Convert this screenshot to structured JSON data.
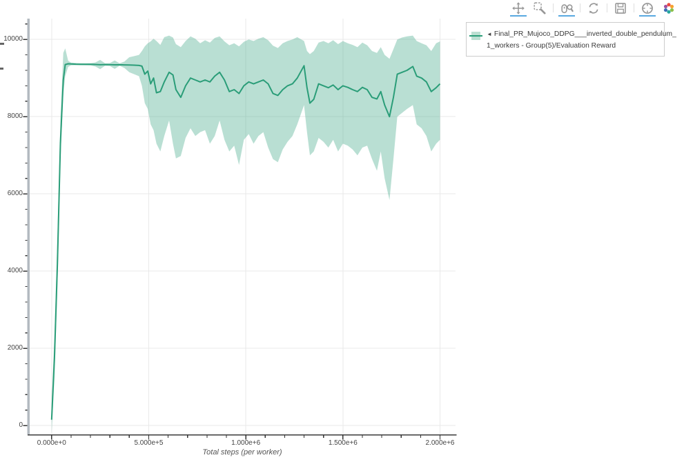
{
  "page": {
    "background": "#ffffff"
  },
  "toolbar": {
    "tools": [
      {
        "name": "pan",
        "active": true
      },
      {
        "name": "box-zoom",
        "active": false
      },
      {
        "name": "wheel-zoom",
        "active": true
      },
      {
        "name": "reset",
        "active": false
      },
      {
        "name": "save",
        "active": false
      },
      {
        "name": "hover",
        "active": true
      },
      {
        "name": "logo",
        "active": false
      }
    ]
  },
  "legend": {
    "marker_glyph": "◄",
    "line1": "Final_PR_Mujoco_DDPG___inverted_double_pendulum_",
    "line2": "1_workers - Group(5)/Evaluation Reward"
  },
  "chart_data": {
    "type": "line",
    "title": "",
    "xlabel": "Total steps (per worker)",
    "ylabel": "",
    "grid": true,
    "legend_position": "top-right-outside",
    "xlim": [
      -113000,
      2080000
    ],
    "ylim": [
      -230,
      10540
    ],
    "x_ticks": [
      {
        "value": 0,
        "label": "0.000e+0"
      },
      {
        "value": 500000,
        "label": "5.000e+5"
      },
      {
        "value": 1000000,
        "label": "1.000e+6"
      },
      {
        "value": 1500000,
        "label": "1.500e+6"
      },
      {
        "value": 2000000,
        "label": "2.000e+6"
      }
    ],
    "y_ticks": [
      {
        "value": 0,
        "label": "0"
      },
      {
        "value": 2000,
        "label": "2000"
      },
      {
        "value": 4000,
        "label": "4000"
      },
      {
        "value": 6000,
        "label": "6000"
      },
      {
        "value": 8000,
        "label": "8000"
      },
      {
        "value": 10000,
        "label": "10000"
      }
    ],
    "x_minor_step": 100000,
    "y_minor_step": 400,
    "y_minor_max": 10400,
    "series": [
      {
        "name": "Final_PR_Mujoco_DDPG___inverted_double_pendulum_1_workers - Group(5)/Evaluation Reward",
        "steps": [
          0,
          15000,
          30000,
          45000,
          60000,
          70000,
          85000,
          100000,
          125000,
          150000,
          175000,
          200000,
          225000,
          250000,
          275000,
          300000,
          325000,
          350000,
          375000,
          400000,
          425000,
          450000,
          465000,
          480000,
          495000,
          510000,
          525000,
          540000,
          560000,
          580000,
          605000,
          625000,
          640000,
          665000,
          690000,
          715000,
          740000,
          765000,
          790000,
          815000,
          840000,
          865000,
          890000,
          915000,
          940000,
          965000,
          990000,
          1015000,
          1040000,
          1065000,
          1090000,
          1115000,
          1140000,
          1165000,
          1190000,
          1215000,
          1240000,
          1265000,
          1300000,
          1315000,
          1330000,
          1350000,
          1375000,
          1400000,
          1425000,
          1450000,
          1475000,
          1500000,
          1525000,
          1550000,
          1575000,
          1600000,
          1625000,
          1650000,
          1675000,
          1695000,
          1715000,
          1740000,
          1760000,
          1780000,
          1805000,
          1830000,
          1860000,
          1880000,
          1905000,
          1930000,
          1955000,
          1980000,
          2000000
        ],
        "mean": [
          150,
          1800,
          4200,
          7300,
          8950,
          9350,
          9370,
          9365,
          9360,
          9358,
          9357,
          9356,
          9352,
          9346,
          9350,
          9348,
          9344,
          9346,
          9342,
          9338,
          9334,
          9328,
          9310,
          9100,
          9180,
          8850,
          9000,
          8620,
          8650,
          8900,
          9150,
          9080,
          8700,
          8500,
          8800,
          9000,
          8950,
          8900,
          8950,
          8900,
          9050,
          9150,
          8950,
          8650,
          8700,
          8600,
          8800,
          8900,
          8850,
          8900,
          8950,
          8850,
          8600,
          8550,
          8700,
          8800,
          8850,
          9000,
          9320,
          8750,
          8350,
          8450,
          8850,
          8800,
          8750,
          8820,
          8700,
          8800,
          8760,
          8700,
          8650,
          8760,
          8700,
          8500,
          8460,
          8650,
          8300,
          8000,
          8500,
          9100,
          9150,
          9200,
          9300,
          9050,
          9000,
          8900,
          8650,
          8750,
          8850
        ],
        "lower": [
          -200,
          1250,
          3600,
          6800,
          8600,
          9050,
          9290,
          9330,
          9335,
          9332,
          9330,
          9326,
          9300,
          9230,
          9318,
          9312,
          9238,
          9318,
          9262,
          9152,
          9100,
          9048,
          8800,
          8350,
          8200,
          7800,
          7650,
          7300,
          7100,
          7500,
          7900,
          7300,
          6920,
          6980,
          7450,
          7700,
          7500,
          7600,
          7650,
          7300,
          7500,
          7900,
          7400,
          7100,
          7250,
          6750,
          7400,
          7550,
          7300,
          7500,
          7600,
          7200,
          6900,
          6820,
          7150,
          7350,
          7500,
          7800,
          8300,
          7600,
          7000,
          7100,
          7450,
          7350,
          7200,
          7400,
          7100,
          7300,
          7250,
          7150,
          7000,
          7200,
          7250,
          6900,
          6600,
          7100,
          6400,
          5840,
          6900,
          8000,
          8100,
          8200,
          8300,
          7800,
          7700,
          7500,
          7100,
          7300,
          7400
        ],
        "upper": [
          550,
          2400,
          4900,
          7900,
          9650,
          9770,
          9450,
          9400,
          9392,
          9386,
          9384,
          9386,
          9404,
          9470,
          9384,
          9388,
          9458,
          9380,
          9428,
          9540,
          9568,
          9600,
          9700,
          9820,
          9900,
          9950,
          10020,
          9960,
          9860,
          10060,
          10100,
          10050,
          9880,
          9800,
          9960,
          10080,
          10020,
          9900,
          9980,
          9920,
          10040,
          10080,
          9950,
          9850,
          9900,
          9820,
          9940,
          10000,
          9960,
          10020,
          10060,
          9980,
          9840,
          9780,
          9900,
          9960,
          10000,
          10060,
          9960,
          9700,
          9620,
          9700,
          9920,
          9960,
          9900,
          9980,
          9880,
          9960,
          9900,
          9860,
          9800,
          9920,
          9850,
          9700,
          9650,
          9800,
          9600,
          9500,
          9750,
          10000,
          10050,
          10080,
          10100,
          9960,
          9900,
          9850,
          9700,
          9900,
          9950
        ]
      }
    ]
  },
  "colors": {
    "line": "#2a9d78",
    "band_opacity": "0.33",
    "band_light": "#bcdfd2",
    "grid": "#e9e9e9",
    "tick": "#333333",
    "tick_label": "#444444",
    "axis_title": "#555555",
    "axis_line": "#3a3a3a",
    "axis_bar": "#b3bac0",
    "toolbar_icon": "#979797",
    "toolbar_active_underline": "#58a8e0",
    "legend_border": "#cccccc",
    "legend_text": "#3a3a3a"
  }
}
